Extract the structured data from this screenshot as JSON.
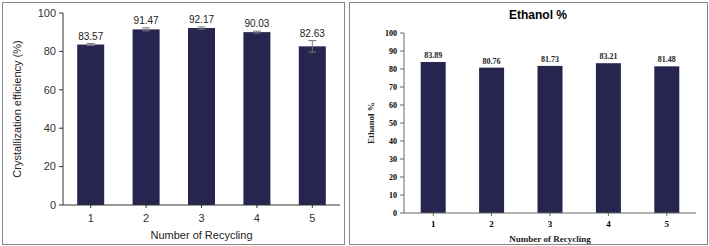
{
  "chart_data": [
    {
      "type": "bar",
      "x_label": "Number of Recycling",
      "y_label": "Crystallization efficiency (%)",
      "categories": [
        "1",
        "2",
        "3",
        "4",
        "5"
      ],
      "values": [
        83.57,
        91.47,
        92.17,
        90.03,
        82.63
      ],
      "errors": [
        0.5,
        0.8,
        0.6,
        0.5,
        3.0
      ],
      "color": "#25254f",
      "ylim": [
        0,
        100
      ],
      "yticks": [
        0,
        20,
        40,
        60,
        80,
        100
      ],
      "grid": false,
      "data_labels": true
    },
    {
      "type": "bar",
      "title": "Ethanol %",
      "x_label": "Number of Recycling",
      "y_label": "Ethanol %",
      "categories": [
        "1",
        "2",
        "3",
        "4",
        "5"
      ],
      "values": [
        83.89,
        80.76,
        81.73,
        83.21,
        81.48
      ],
      "color": "#25254f",
      "ylim": [
        0,
        100
      ],
      "yticks": [
        0,
        10,
        20,
        30,
        40,
        50,
        60,
        70,
        80,
        90,
        100
      ],
      "grid": false,
      "data_labels": true
    }
  ]
}
